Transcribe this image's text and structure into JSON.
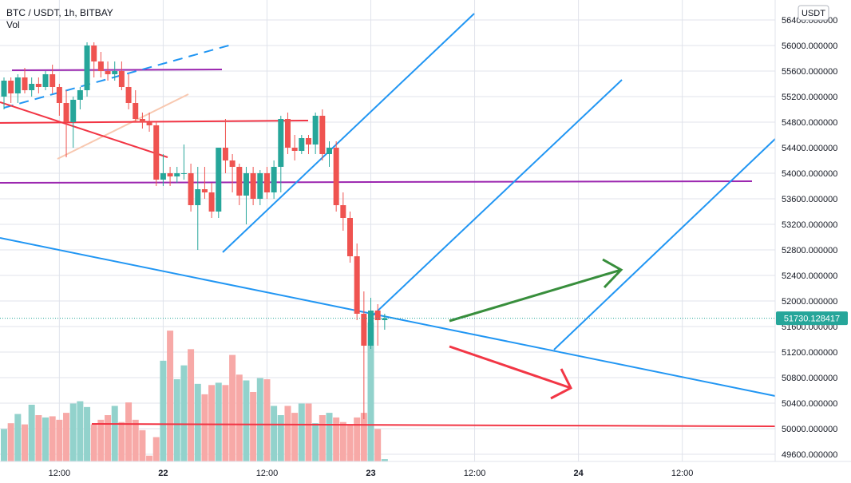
{
  "header": {
    "symbol": "BTC / USDT, 1h, BITBAY",
    "volume_label": "Vol"
  },
  "currency_badge": "USDT",
  "last_price_label": "51730.128417",
  "colors": {
    "up": "#26a69a",
    "down": "#ef5350",
    "vol_up": "#92d2cc",
    "vol_down": "#f7a9a7",
    "grid": "#e0e3eb",
    "axis_text": "#131722",
    "blue": "#2196f3",
    "purple": "#9c27b0",
    "red": "#f23645",
    "green": "#388e3c",
    "peach": "#f8c8b0",
    "price_tag": "#26a69a"
  },
  "chart_data": {
    "type": "candlestick",
    "title": "BTC / USDT, 1h, BITBAY",
    "y_ticks": [
      "56400.000000",
      "56000.000000",
      "55600.000000",
      "55200.000000",
      "54800.000000",
      "54400.000000",
      "54000.000000",
      "53600.000000",
      "53200.000000",
      "52800.000000",
      "52400.000000",
      "52000.000000",
      "51600.000000",
      "51200.000000",
      "50800.000000",
      "50400.000000",
      "50000.000000",
      "49600.000000"
    ],
    "y_range": [
      49400,
      56700
    ],
    "x_ticks": [
      {
        "label": "12:00",
        "bar": 8,
        "bold": false
      },
      {
        "label": "22",
        "bar": 23,
        "bold": true
      },
      {
        "label": "12:00",
        "bar": 38,
        "bold": false
      },
      {
        "label": "23",
        "bar": 53,
        "bold": true
      },
      {
        "label": "12:00",
        "bar": 68,
        "bold": false
      },
      {
        "label": "24",
        "bar": 83,
        "bold": true
      },
      {
        "label": "12:00",
        "bar": 98,
        "bold": false
      }
    ],
    "last_price": 51730.128417,
    "candles": [
      {
        "o": 55200,
        "h": 55500,
        "l": 55000,
        "c": 55450,
        "v": 0.28
      },
      {
        "o": 55450,
        "h": 55500,
        "l": 55100,
        "c": 55250,
        "v": 0.33
      },
      {
        "o": 55250,
        "h": 55550,
        "l": 55100,
        "c": 55500,
        "v": 0.41
      },
      {
        "o": 55500,
        "h": 55650,
        "l": 55250,
        "c": 55300,
        "v": 0.32
      },
      {
        "o": 55300,
        "h": 55500,
        "l": 55200,
        "c": 55400,
        "v": 0.49
      },
      {
        "o": 55400,
        "h": 55500,
        "l": 55250,
        "c": 55350,
        "v": 0.4
      },
      {
        "o": 55350,
        "h": 55600,
        "l": 55300,
        "c": 55550,
        "v": 0.38
      },
      {
        "o": 55550,
        "h": 55700,
        "l": 55250,
        "c": 55350,
        "v": 0.39
      },
      {
        "o": 55350,
        "h": 55400,
        "l": 54900,
        "c": 55100,
        "v": 0.36
      },
      {
        "o": 55100,
        "h": 55300,
        "l": 54250,
        "c": 54800,
        "v": 0.42
      },
      {
        "o": 54800,
        "h": 55200,
        "l": 54400,
        "c": 55150,
        "v": 0.5
      },
      {
        "o": 55150,
        "h": 55350,
        "l": 55000,
        "c": 55300,
        "v": 0.52
      },
      {
        "o": 55300,
        "h": 56050,
        "l": 55200,
        "c": 56000,
        "v": 0.47
      },
      {
        "o": 56000,
        "h": 56050,
        "l": 55500,
        "c": 55750,
        "v": 0.32
      },
      {
        "o": 55750,
        "h": 55900,
        "l": 55500,
        "c": 55600,
        "v": 0.36
      },
      {
        "o": 55600,
        "h": 55750,
        "l": 55450,
        "c": 55550,
        "v": 0.4
      },
      {
        "o": 55550,
        "h": 55750,
        "l": 55450,
        "c": 55600,
        "v": 0.48
      },
      {
        "o": 55600,
        "h": 55750,
        "l": 55300,
        "c": 55350,
        "v": 0.34
      },
      {
        "o": 55350,
        "h": 55550,
        "l": 55000,
        "c": 55100,
        "v": 0.51
      },
      {
        "o": 55100,
        "h": 55300,
        "l": 54800,
        "c": 54850,
        "v": 0.36
      },
      {
        "o": 54850,
        "h": 54950,
        "l": 54700,
        "c": 54800,
        "v": 0.27
      },
      {
        "o": 54800,
        "h": 54950,
        "l": 54650,
        "c": 54750,
        "v": 0.05
      },
      {
        "o": 54750,
        "h": 54800,
        "l": 53800,
        "c": 53900,
        "v": 0.21
      },
      {
        "o": 53900,
        "h": 54300,
        "l": 53800,
        "c": 54000,
        "v": 0.87
      },
      {
        "o": 54000,
        "h": 54100,
        "l": 53800,
        "c": 53950,
        "v": 1.13
      },
      {
        "o": 53950,
        "h": 54100,
        "l": 53850,
        "c": 54000,
        "v": 0.71
      },
      {
        "o": 54000,
        "h": 54450,
        "l": 53900,
        "c": 54000,
        "v": 0.83
      },
      {
        "o": 54000,
        "h": 54150,
        "l": 53400,
        "c": 53500,
        "v": 0.97
      },
      {
        "o": 53500,
        "h": 54100,
        "l": 52800,
        "c": 53750,
        "v": 0.67
      },
      {
        "o": 53750,
        "h": 54100,
        "l": 53600,
        "c": 53700,
        "v": 0.58
      },
      {
        "o": 53700,
        "h": 53850,
        "l": 53300,
        "c": 53400,
        "v": 0.66
      },
      {
        "o": 53400,
        "h": 54400,
        "l": 53300,
        "c": 54400,
        "v": 0.68
      },
      {
        "o": 54400,
        "h": 54850,
        "l": 54000,
        "c": 54200,
        "v": 0.66
      },
      {
        "o": 54200,
        "h": 54300,
        "l": 53700,
        "c": 54100,
        "v": 0.92
      },
      {
        "o": 54100,
        "h": 54150,
        "l": 53500,
        "c": 53650,
        "v": 0.75
      },
      {
        "o": 53650,
        "h": 54100,
        "l": 53200,
        "c": 54000,
        "v": 0.7
      },
      {
        "o": 54000,
        "h": 54100,
        "l": 53500,
        "c": 53600,
        "v": 0.6
      },
      {
        "o": 53600,
        "h": 54050,
        "l": 53500,
        "c": 54000,
        "v": 0.72
      },
      {
        "o": 54000,
        "h": 54100,
        "l": 53600,
        "c": 53700,
        "v": 0.71
      },
      {
        "o": 53700,
        "h": 54200,
        "l": 53600,
        "c": 54100,
        "v": 0.48
      },
      {
        "o": 54100,
        "h": 54900,
        "l": 53700,
        "c": 54850,
        "v": 0.4
      },
      {
        "o": 54850,
        "h": 54950,
        "l": 54300,
        "c": 54400,
        "v": 0.48
      },
      {
        "o": 54400,
        "h": 54600,
        "l": 54200,
        "c": 54350,
        "v": 0.42
      },
      {
        "o": 54350,
        "h": 54600,
        "l": 54300,
        "c": 54550,
        "v": 0.5
      },
      {
        "o": 54550,
        "h": 54600,
        "l": 54300,
        "c": 54450,
        "v": 0.5
      },
      {
        "o": 54450,
        "h": 54950,
        "l": 54300,
        "c": 54900,
        "v": 0.33
      },
      {
        "o": 54900,
        "h": 55000,
        "l": 54200,
        "c": 54300,
        "v": 0.4
      },
      {
        "o": 54300,
        "h": 54500,
        "l": 54100,
        "c": 54400,
        "v": 0.42
      },
      {
        "o": 54400,
        "h": 54500,
        "l": 53400,
        "c": 53500,
        "v": 0.38
      },
      {
        "o": 53500,
        "h": 53700,
        "l": 53100,
        "c": 53300,
        "v": 0.34
      },
      {
        "o": 53300,
        "h": 53400,
        "l": 52600,
        "c": 52700,
        "v": 0.31
      },
      {
        "o": 52700,
        "h": 52900,
        "l": 51700,
        "c": 51800,
        "v": 0.38
      },
      {
        "o": 51800,
        "h": 52150,
        "l": 50150,
        "c": 51300,
        "v": 0.42
      },
      {
        "o": 51300,
        "h": 52050,
        "l": 51250,
        "c": 51850,
        "v": 1.2
      },
      {
        "o": 51850,
        "h": 51950,
        "l": 51300,
        "c": 51700,
        "v": 0.28
      },
      {
        "o": 51700,
        "h": 51800,
        "l": 51550,
        "c": 51730,
        "v": 0.02
      }
    ]
  }
}
